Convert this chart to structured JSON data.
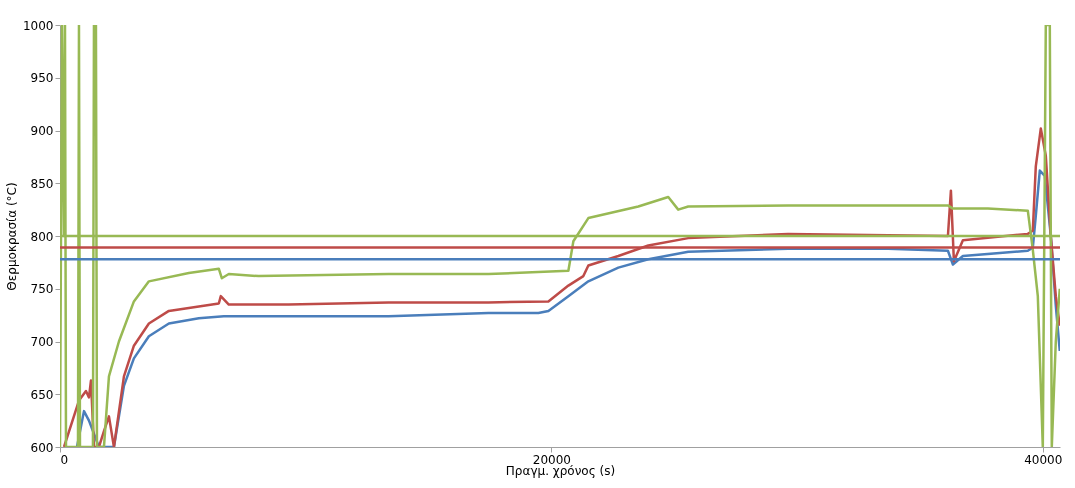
{
  "chart_data": {
    "type": "line",
    "xlabel": "Πραγμ. χρόνος (s)",
    "ylabel": "Θερμοκρασία (°C)",
    "xlim": [
      0,
      40700
    ],
    "xticks": [
      0,
      20000,
      40000
    ],
    "ylim": [
      600,
      1000
    ],
    "yticks": [
      600,
      650,
      700,
      750,
      800,
      850,
      900,
      950,
      1000
    ],
    "grid": false,
    "legend": false,
    "marker": "none",
    "line_style": "solid",
    "series": [
      {
        "color": "#4a7ebb",
        "x": [
          691,
          976,
          1179,
          1585,
          2195,
          2602,
          3008,
          3618,
          4431,
          5650,
          6667,
          9309,
          13374,
          17439,
          19471,
          19878,
          20691,
          21504,
          22724,
          23943,
          25569,
          29634,
          33699,
          36138,
          36341,
          36748,
          39390,
          39593,
          39715,
          39878,
          40081,
          40326,
          40529,
          40691
        ],
        "values": [
          600,
          634,
          625,
          600,
          600,
          658,
          684,
          705,
          717,
          722,
          724,
          724,
          724,
          727,
          727,
          729,
          743,
          757,
          770,
          778,
          785,
          788,
          788,
          786,
          773,
          781,
          786,
          789,
          819,
          862,
          857,
          800,
          734,
          691
        ]
      },
      {
        "color": "#be4b48",
        "x": [
          163,
          772,
          1057,
          1179,
          1260,
          1382,
          1585,
          1789,
          1992,
          2195,
          2602,
          3008,
          3618,
          4431,
          6463,
          6545,
          6870,
          9309,
          13374,
          17439,
          19878,
          20691,
          21301,
          21504,
          22724,
          23943,
          25569,
          29634,
          36138,
          36260,
          36382,
          36748,
          39390,
          39593,
          39715,
          39919,
          40122,
          40326,
          40529,
          40691
        ],
        "values": [
          600,
          644,
          653,
          647,
          663,
          600,
          600,
          615,
          629,
          600,
          667,
          696,
          717,
          729,
          736,
          743,
          735,
          735,
          737,
          737,
          738,
          753,
          762,
          772,
          781,
          791,
          798,
          802,
          800,
          843,
          776,
          796,
          802,
          805,
          866,
          902,
          876,
          800,
          743,
          715
        ]
      },
      {
        "color": "#98b954",
        "x": [
          0,
          81,
          163,
          203,
          244,
          732,
          772,
          813,
          1341,
          1382,
          1463,
          1504,
          1789,
          1992,
          2398,
          3008,
          3618,
          5244,
          6463,
          6585,
          6870,
          8089,
          13374,
          17439,
          20691,
          20894,
          21504,
          23536,
          24756,
          25162,
          25569,
          29634,
          36138,
          36341,
          37764,
          39390,
          39593,
          39797,
          40000,
          40122,
          40285,
          40366,
          40529,
          40691
        ],
        "values": [
          600,
          1000,
          800,
          1000,
          600,
          600,
          1000,
          600,
          600,
          1000,
          1000,
          600,
          600,
          667,
          700,
          738,
          757,
          765,
          769,
          760,
          764,
          762,
          764,
          764,
          767,
          795,
          817,
          828,
          837,
          825,
          828,
          829,
          829,
          826,
          826,
          824,
          787,
          743,
          600,
          1000,
          1000,
          600,
          700,
          750
        ]
      }
    ],
    "ref_lines": [
      {
        "axis": "y",
        "value": 800,
        "color": "#98b954"
      },
      {
        "axis": "y",
        "value": 789,
        "color": "#be4b48"
      },
      {
        "axis": "y",
        "value": 778,
        "color": "#4a7ebb"
      }
    ]
  }
}
